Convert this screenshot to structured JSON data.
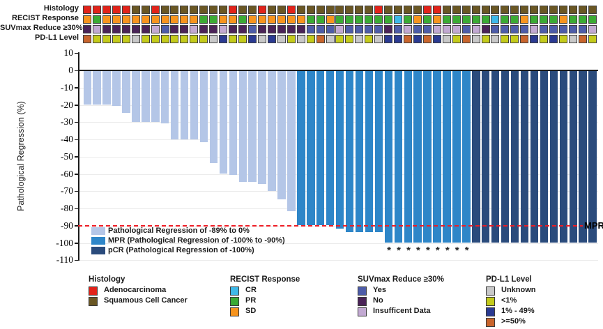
{
  "annotation": {
    "rows": [
      {
        "label": "Histology",
        "palette": {
          "A": "#e2231a",
          "S": "#6a5724"
        },
        "cells": [
          "A",
          "A",
          "A",
          "A",
          "A",
          "S",
          "S",
          "A",
          "S",
          "S",
          "S",
          "S",
          "S",
          "S",
          "S",
          "A",
          "S",
          "S",
          "A",
          "S",
          "S",
          "A",
          "S",
          "S",
          "S",
          "S",
          "S",
          "S",
          "S",
          "S",
          "A",
          "S",
          "S",
          "S",
          "S",
          "A",
          "A",
          "S",
          "S",
          "S",
          "S",
          "S",
          "S",
          "S",
          "S",
          "S",
          "S",
          "S",
          "S",
          "S",
          "S",
          "S",
          "S"
        ]
      },
      {
        "label": "RECIST Response",
        "palette": {
          "CR": "#3fb9e8",
          "PR": "#3baa34",
          "SD": "#f7941e"
        },
        "cells": [
          "SD",
          "PR",
          "SD",
          "SD",
          "SD",
          "SD",
          "SD",
          "SD",
          "SD",
          "SD",
          "SD",
          "SD",
          "PR",
          "PR",
          "SD",
          "SD",
          "PR",
          "SD",
          "SD",
          "SD",
          "SD",
          "SD",
          "SD",
          "PR",
          "PR",
          "SD",
          "PR",
          "PR",
          "PR",
          "PR",
          "PR",
          "PR",
          "CR",
          "PR",
          "SD",
          "PR",
          "SD",
          "PR",
          "PR",
          "PR",
          "PR",
          "PR",
          "CR",
          "PR",
          "PR",
          "SD",
          "PR",
          "PR",
          "PR",
          "SD",
          "PR",
          "PR",
          "PR"
        ]
      },
      {
        "label": "SUVmax Reduce ≥30%",
        "palette": {
          "Y": "#4d5ca8",
          "N": "#4a2357",
          "I": "#c2a9d2"
        },
        "cells": [
          "N",
          "I",
          "N",
          "N",
          "N",
          "N",
          "N",
          "I",
          "Y",
          "N",
          "N",
          "I",
          "N",
          "N",
          "I",
          "N",
          "N",
          "Y",
          "N",
          "N",
          "N",
          "N",
          "N",
          "Y",
          "Y",
          "Y",
          "I",
          "Y",
          "Y",
          "Y",
          "Y",
          "N",
          "Y",
          "I",
          "Y",
          "Y",
          "I",
          "I",
          "I",
          "Y",
          "I",
          "N",
          "Y",
          "Y",
          "Y",
          "Y",
          "I",
          "Y",
          "Y",
          "Y",
          "Y",
          "Y",
          "I"
        ]
      },
      {
        "label": "PD-L1 Level",
        "palette": {
          "U": "#c8c8c8",
          "<1": "#c4cb1b",
          "1-49": "#2a3a92",
          ">=50": "#c9652c"
        },
        "cells": [
          ">=50",
          "<1",
          "<1",
          "<1",
          "<1",
          "U",
          "<1",
          "<1",
          "<1",
          "<1",
          "<1",
          "<1",
          "<1",
          "U",
          "1-49",
          "<1",
          "<1",
          "1-49",
          "U",
          "1-49",
          "U",
          "<1",
          "U",
          "<1",
          ">=50",
          "U",
          "<1",
          "<1",
          "U",
          "<1",
          "U",
          "1-49",
          "1-49",
          ">=50",
          "1-49",
          ">=50",
          "1-49",
          "U",
          "<1",
          ">=50",
          "U",
          "<1",
          "U",
          "<1",
          "<1",
          ">=50",
          "1-49",
          "<1",
          "1-49",
          "<1",
          "U",
          ">=50",
          "<1"
        ]
      }
    ]
  },
  "chart_data": {
    "type": "bar",
    "title": "",
    "xlabel": "",
    "ylabel": "Pathological Regression (%)",
    "ylim": [
      10,
      -110
    ],
    "yticks": [
      10,
      0,
      -10,
      -20,
      -30,
      -40,
      -50,
      -60,
      -70,
      -80,
      -90,
      -100,
      -110
    ],
    "n_patients": 53,
    "values": [
      -20,
      -20,
      -20,
      -21,
      -25,
      -30,
      -30,
      -30,
      -31,
      -40,
      -40,
      -40,
      -42,
      -54,
      -60,
      -61,
      -65,
      -65,
      -66,
      -70,
      -75,
      -82,
      -90,
      -90,
      -90,
      -90,
      -92,
      -94,
      -94,
      -94,
      -94,
      -100,
      -100,
      -100,
      -100,
      -100,
      -100,
      -100,
      -100,
      -100,
      -100,
      -100,
      -100,
      -100,
      -100,
      -100,
      -100,
      -100,
      -100,
      -100,
      -100,
      -100,
      -100
    ],
    "groups": {
      "partial": [
        1,
        22
      ],
      "mpr": [
        23,
        40
      ],
      "pcr": [
        41,
        53
      ]
    },
    "group_colors": {
      "partial": "#b4c6e7",
      "mpr": "#2e86c8",
      "pcr": "#2a4b7c"
    },
    "asterisk_columns": [
      32,
      33,
      34,
      35,
      36,
      37,
      38,
      39,
      40
    ],
    "asterisk_symbol": "*",
    "reference_line": {
      "value": -90,
      "label": "MPR",
      "color": "#ed1c24",
      "style": "dashed"
    },
    "grid": true,
    "bar_legend": [
      {
        "label": "Pathological Regression of -89% to 0%",
        "color": "#b4c6e7"
      },
      {
        "label": "MPR (Pathological Regression of -100% to -90%)",
        "color": "#2e86c8"
      },
      {
        "label": "pCR (Pathological Regression of -100%)",
        "color": "#2a4b7c"
      }
    ]
  },
  "legends": [
    {
      "title": "Histology",
      "items": [
        {
          "label": "Adenocarcinoma",
          "color": "#e2231a"
        },
        {
          "label": "Squamous Cell Cancer",
          "color": "#6a5724"
        }
      ]
    },
    {
      "title": "RECIST Response",
      "items": [
        {
          "label": "CR",
          "color": "#3fb9e8"
        },
        {
          "label": "PR",
          "color": "#3baa34"
        },
        {
          "label": "SD",
          "color": "#f7941e"
        }
      ]
    },
    {
      "title": "SUVmax Reduce ≥30%",
      "items": [
        {
          "label": "Yes",
          "color": "#4d5ca8"
        },
        {
          "label": "No",
          "color": "#4a2357"
        },
        {
          "label": "Insufficent Data",
          "color": "#c2a9d2"
        }
      ]
    },
    {
      "title": "PD-L1 Level",
      "items": [
        {
          "label": "Unknown",
          "color": "#c8c8c8"
        },
        {
          "label": "<1%",
          "color": "#c4cb1b"
        },
        {
          "label": "1% - 49%",
          "color": "#2a3a92"
        },
        {
          "label": ">=50%",
          "color": "#c9652c"
        }
      ]
    }
  ]
}
